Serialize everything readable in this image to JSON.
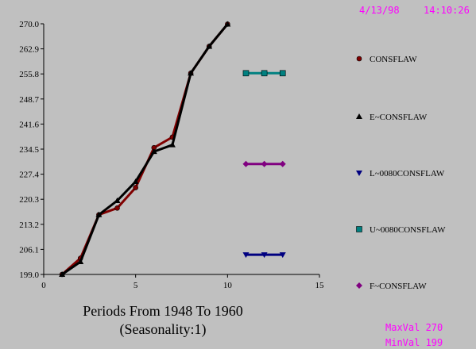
{
  "header": {
    "date": "4/13/98",
    "time": "14:10:26"
  },
  "footer": {
    "title_line1": "Periods From 1948 To 1960",
    "title_line2": "(Seasonality:1)",
    "maxval": "MaxVal 270",
    "minval": "MinVal 199"
  },
  "colors": {
    "background": "#c0c0c0",
    "stamp": "#ff00ff"
  },
  "chart_data": {
    "type": "line",
    "xlim": [
      0,
      15
    ],
    "ylim": [
      199.0,
      270.0
    ],
    "x_ticks": [
      "0",
      "5",
      "10",
      "15"
    ],
    "y_ticks": [
      "199.0",
      "206.1",
      "213.2",
      "220.3",
      "227.4",
      "234.5",
      "241.6",
      "248.7",
      "255.8",
      "262.9",
      "270.0"
    ],
    "grid": false,
    "legend_position": "right",
    "series": [
      {
        "name": "CONSFLAW",
        "marker": "circle",
        "color": "#800000",
        "x": [
          1,
          2,
          3,
          4,
          5,
          6,
          7,
          8,
          9,
          10
        ],
        "y": [
          199.0,
          203.6,
          215.9,
          217.8,
          223.6,
          234.9,
          237.9,
          256.0,
          263.6,
          269.9
        ]
      },
      {
        "name": "E~CONSFLAW",
        "marker": "triangle-up",
        "color": "#000000",
        "x": [
          1,
          2,
          3,
          4,
          5,
          6,
          7,
          8,
          9,
          10
        ],
        "y": [
          199.0,
          202.6,
          215.9,
          219.9,
          225.3,
          233.8,
          235.7,
          256.0,
          263.6,
          269.9
        ]
      },
      {
        "name": "L~0080CONSFLAW",
        "marker": "triangle-down",
        "color": "#000080",
        "x": [
          11,
          12,
          13
        ],
        "y": [
          204.6,
          204.6,
          204.6
        ]
      },
      {
        "name": "U~0080CONSFLAW",
        "marker": "square",
        "color": "#008080",
        "x": [
          11,
          12,
          13
        ],
        "y": [
          256.0,
          256.0,
          256.0
        ]
      },
      {
        "name": "F~CONSFLAW",
        "marker": "diamond",
        "color": "#800080",
        "x": [
          11,
          12,
          13
        ],
        "y": [
          230.3,
          230.3,
          230.3
        ]
      }
    ]
  }
}
